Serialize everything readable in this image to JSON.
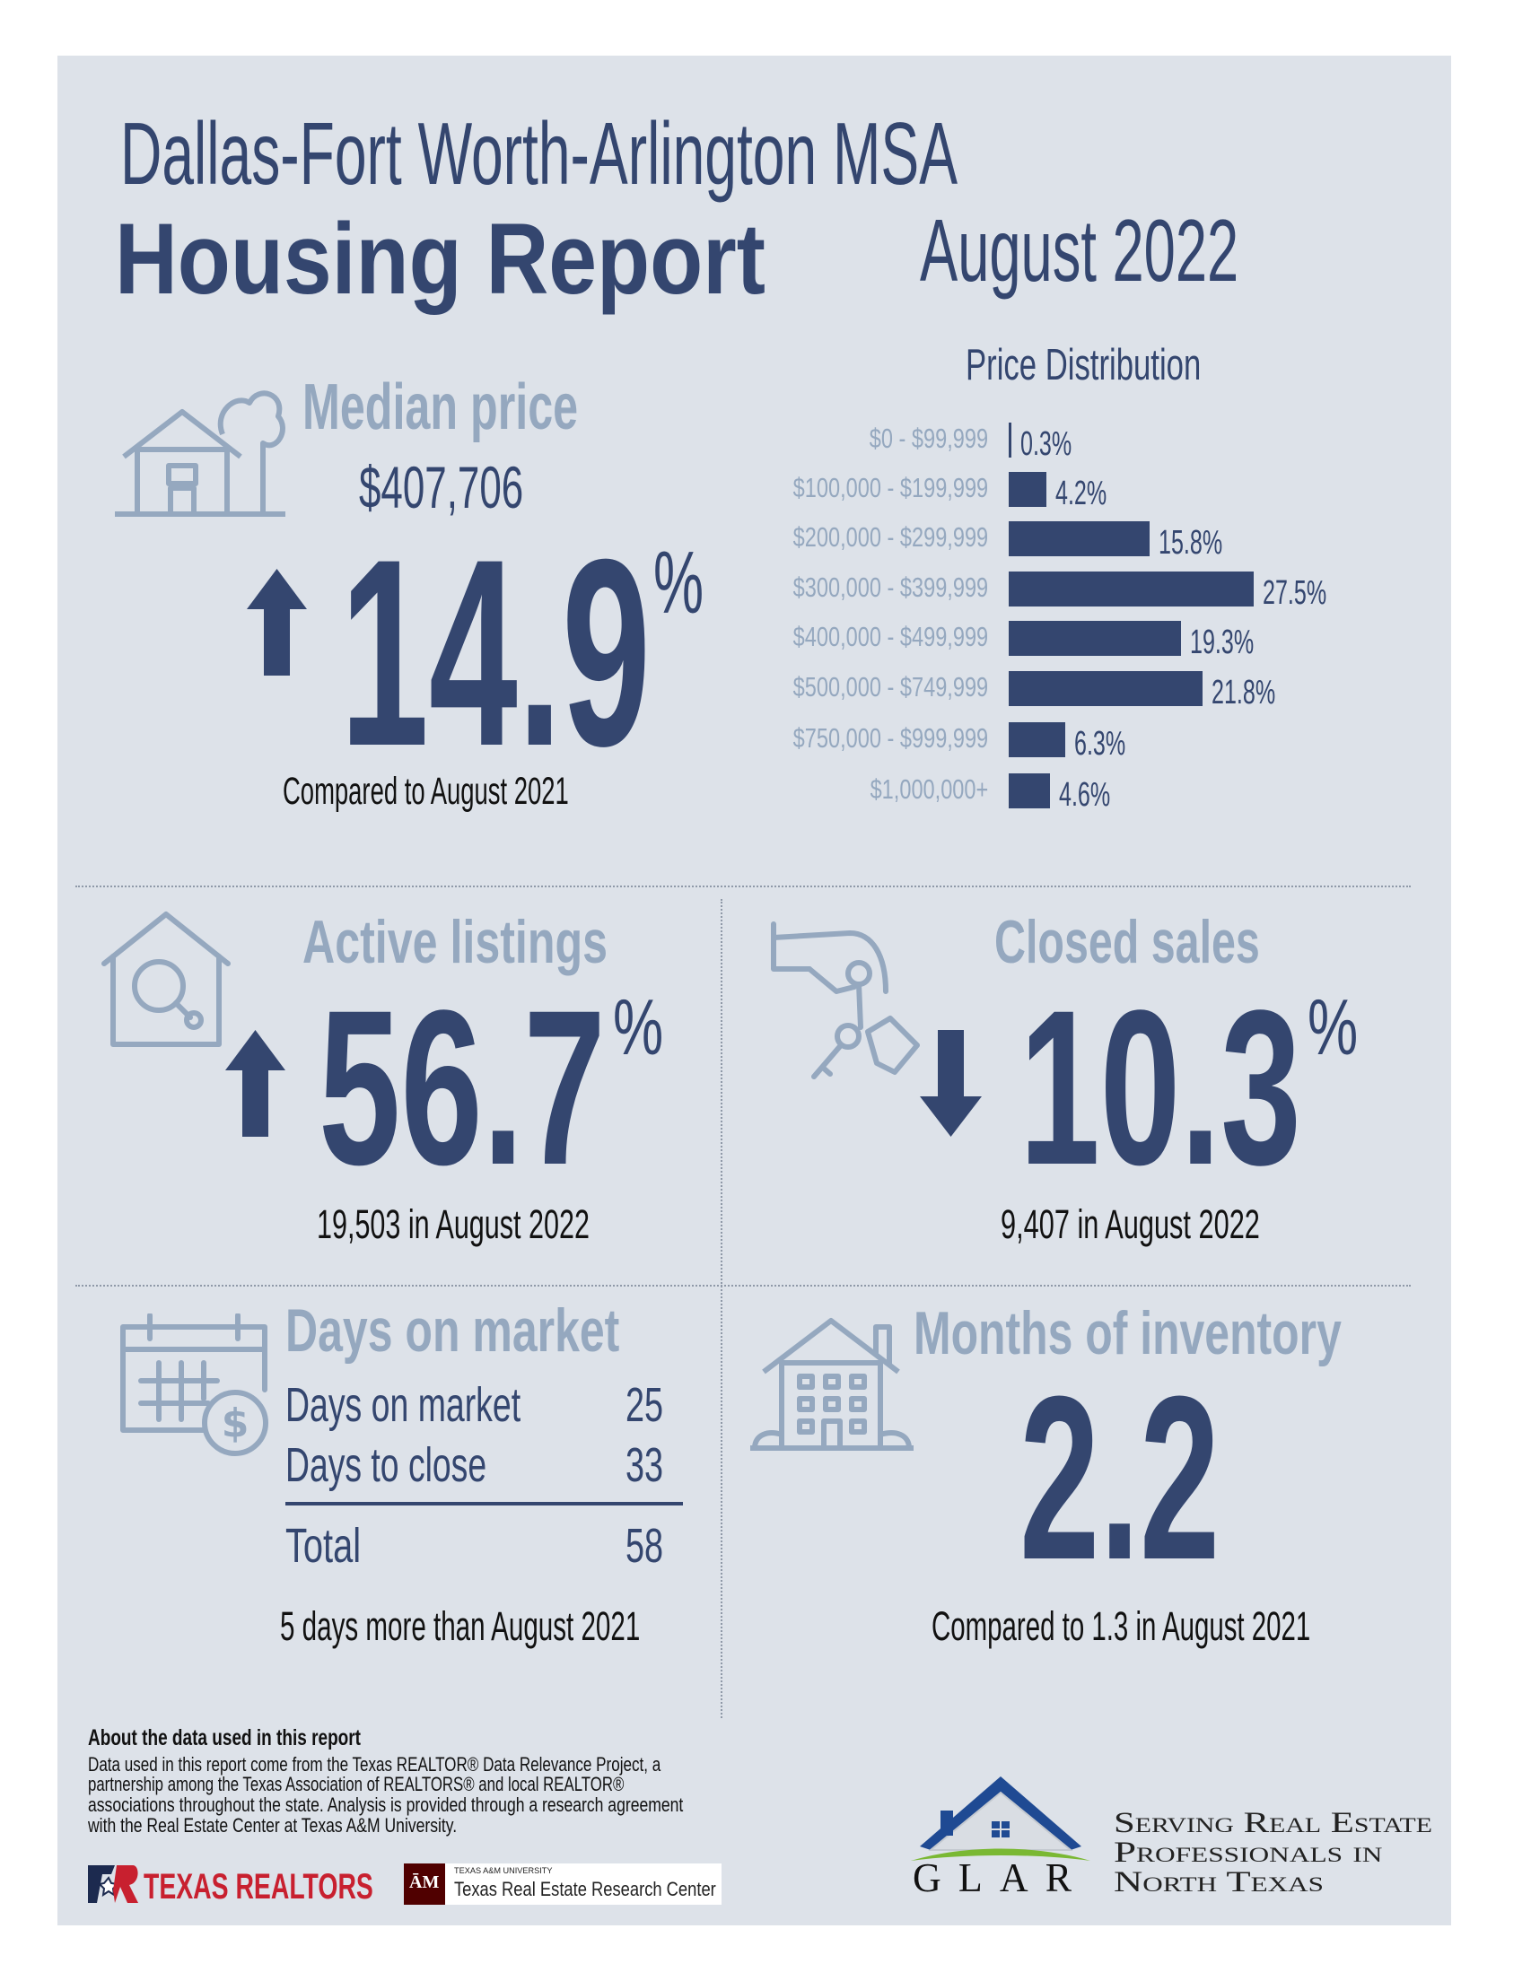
{
  "header": {
    "region": "Dallas-Fort Worth-Arlington MSA",
    "title": "Housing Report",
    "period": "August 2022"
  },
  "median_price": {
    "heading": "Median price",
    "value": "$407,706",
    "change": "14.9",
    "unit": "%",
    "direction": "up",
    "note": "Compared to August 2021"
  },
  "chart_data": {
    "type": "bar",
    "orientation": "horizontal",
    "title": "Price Distribution",
    "categories": [
      "$0 - $99,999",
      "$100,000 - $199,999",
      "$200,000 - $299,999",
      "$300,000 - $399,999",
      "$400,000 - $499,999",
      "$500,000 - $749,999",
      "$750,000 - $999,999",
      "$1,000,000+"
    ],
    "values": [
      0.3,
      4.2,
      15.8,
      27.5,
      19.3,
      21.8,
      6.3,
      4.6
    ],
    "labels": [
      "0.3%",
      "4.2%",
      "15.8%",
      "27.5%",
      "19.3%",
      "21.8%",
      "6.3%",
      "4.6%"
    ],
    "xlim": [
      0,
      27.5
    ],
    "grid": false,
    "bar_color": "#34466f"
  },
  "active_listings": {
    "heading": "Active listings",
    "change": "56.7",
    "unit": "%",
    "direction": "up",
    "note": "19,503 in August 2022"
  },
  "closed_sales": {
    "heading": "Closed sales",
    "change": "10.3",
    "unit": "%",
    "direction": "down",
    "note": "9,407 in August 2022"
  },
  "days_on_market": {
    "heading": "Days on market",
    "rows": [
      {
        "label": "Days on market",
        "value": "25"
      },
      {
        "label": "Days to close",
        "value": "33"
      }
    ],
    "total": {
      "label": "Total",
      "value": "58"
    },
    "note": "5 days more than August 2021"
  },
  "months_inventory": {
    "heading": "Months of inventory",
    "value": "2.2",
    "note": "Compared to 1.3 in August 2021"
  },
  "footer": {
    "about_heading": "About the data used in this report",
    "about_lines": [
      "Data used in this report come from the Texas REALTOR® Data Relevance Project, a",
      "partnership among the Texas Association of REALTORS® and local REALTOR®",
      "associations throughout the state. Analysis is provided through a research agreement",
      "with the Real Estate Center at Texas A&M University."
    ],
    "texas_realtors_logo": "TEXAS REALTORS",
    "tamu_small": "TEXAS A&M UNIVERSITY",
    "tamu_center": "Texas Real Estate Research Center",
    "glar_logo": "GLAR",
    "glar_tagline": [
      "Serving Real Estate",
      "Professionals in",
      "North Texas"
    ]
  },
  "colors": {
    "navy": "#34466f",
    "muted": "#95a8bf",
    "card": "#dde2e9",
    "texas_red": "#c8202f",
    "tamu_maroon": "#500000",
    "glar_blue": "#1f4a93",
    "glar_green": "#7ab833"
  }
}
